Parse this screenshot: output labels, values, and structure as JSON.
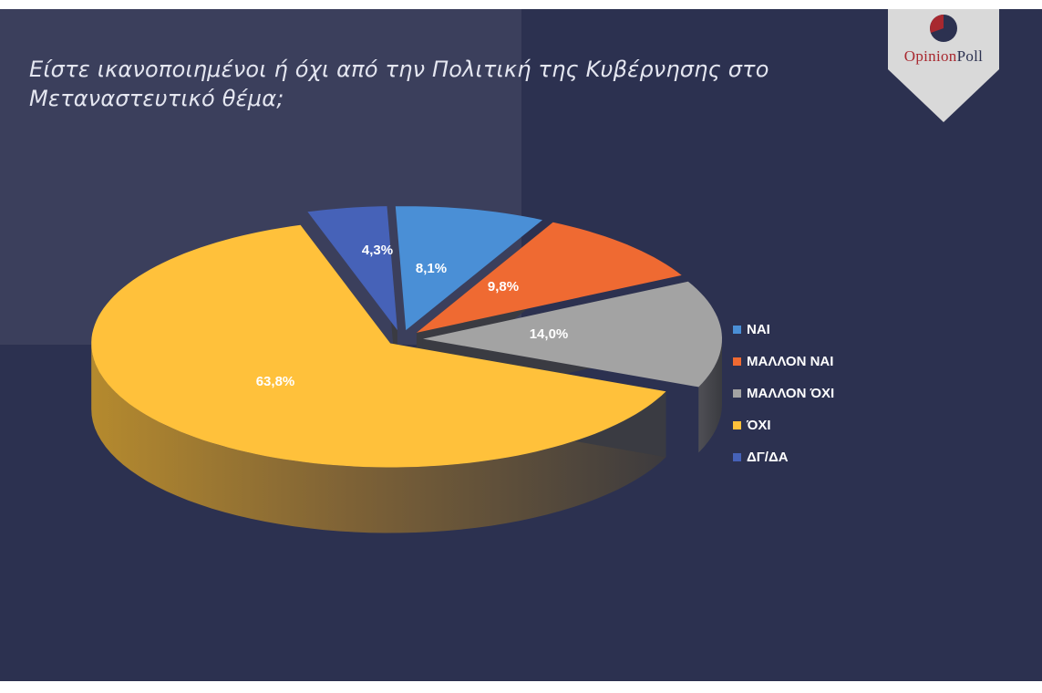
{
  "chart_data": {
    "type": "pie",
    "title": "Είστε ικανοποιημένοι ή όχι από την Πολιτική της Κυβέρνησης στο Μεταναστευτικό θέμα;",
    "categories": [
      "ΝΑΙ",
      "ΜΑΛΛΟΝ ΝΑΙ",
      "ΜΑΛΛΟΝ ΌΧΙ",
      "ΌΧΙ",
      "ΔΓ/ΔΑ"
    ],
    "values": [
      8.1,
      9.8,
      14.0,
      63.8,
      4.3
    ],
    "data_labels": [
      "8,1%",
      "9,8%",
      "14,0%",
      "63,8%",
      "4,3%"
    ],
    "colors": [
      "#4a8fd6",
      "#ef6a32",
      "#a3a3a3",
      "#ffc13b",
      "#4662b8"
    ],
    "legend_position": "right",
    "style": "3d-exploded"
  },
  "brand": {
    "part1": "Opinion",
    "part2": "Poll",
    "colors": {
      "accent": "#a8282f",
      "dark": "#2c3150",
      "badge": "#d9d9d9"
    }
  }
}
